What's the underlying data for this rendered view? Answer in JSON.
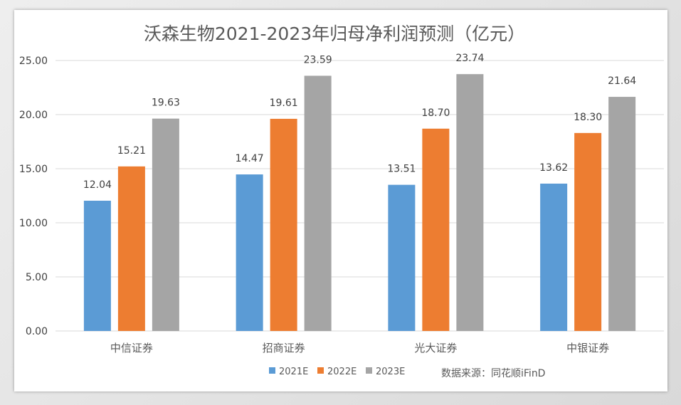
{
  "chart_data": {
    "type": "bar",
    "title": "沃森生物2021-2023年归母净利润预测（亿元）",
    "categories": [
      "中信证券",
      "招商证券",
      "光大证券",
      "中银证券"
    ],
    "series": [
      {
        "name": "2021E",
        "values": [
          12.04,
          14.47,
          13.51,
          13.62
        ],
        "color": "#5b9bd5"
      },
      {
        "name": "2022E",
        "values": [
          15.21,
          19.61,
          18.7,
          18.3
        ],
        "color": "#ed7d31"
      },
      {
        "name": "2023E",
        "values": [
          19.63,
          23.59,
          23.74,
          21.64
        ],
        "color": "#a5a5a5"
      }
    ],
    "ylim": [
      0,
      25
    ],
    "yticks": [
      "0.00",
      "5.00",
      "10.00",
      "15.00",
      "20.00",
      "25.00"
    ],
    "value_format": "2-decimals",
    "grid": true,
    "legend": "bottom-center",
    "source_note": "数据来源：同花顺iFinD"
  }
}
